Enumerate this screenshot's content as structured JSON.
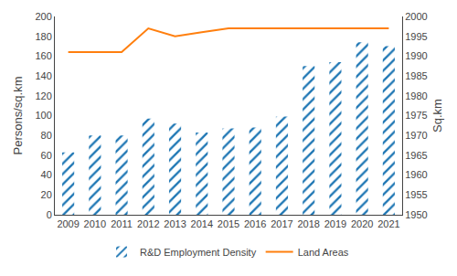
{
  "chart_data": {
    "type": "bar",
    "categories": [
      "2009",
      "2010",
      "2011",
      "2012",
      "2013",
      "2014",
      "2015",
      "2016",
      "2017",
      "2018",
      "2019",
      "2020",
      "2021"
    ],
    "series": [
      {
        "name": "R&D Employment Density",
        "type": "bar",
        "values": [
          63,
          80,
          80,
          97,
          92,
          83,
          87,
          88,
          99,
          150,
          154,
          174,
          170
        ]
      },
      {
        "name": "Land Areas",
        "type": "line",
        "axis": "y2",
        "values": [
          1991,
          1991,
          1991,
          1997,
          1995,
          1996,
          1997,
          1997,
          1997,
          1997,
          1997,
          1997,
          1997
        ]
      }
    ],
    "y_label": "Persons/sq.km",
    "y2_label": "Sq.km",
    "ylim": [
      0,
      200
    ],
    "yticks": [
      0,
      20,
      40,
      60,
      80,
      100,
      120,
      140,
      160,
      180,
      200
    ],
    "y2lim": [
      1950,
      2000
    ],
    "y2ticks": [
      1950,
      1955,
      1960,
      1965,
      1970,
      1975,
      1980,
      1985,
      1990,
      1995,
      2000
    ],
    "grid": false,
    "legend": "bottom"
  }
}
